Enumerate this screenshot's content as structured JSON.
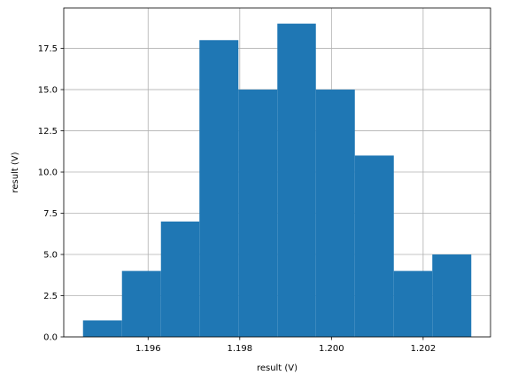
{
  "chart_data": {
    "type": "bar",
    "variant": "histogram",
    "title": "",
    "xlabel": "result (V)",
    "ylabel": "result (V)",
    "bin_edges": [
      1.19458,
      1.19543,
      1.19628,
      1.19712,
      1.19797,
      1.19882,
      1.19966,
      1.20051,
      1.20136,
      1.2022,
      1.20305
    ],
    "counts": [
      1,
      4,
      7,
      18,
      15,
      19,
      15,
      11,
      4,
      5
    ],
    "xlim": [
      1.19416,
      1.20347
    ],
    "ylim": [
      0,
      19.95
    ],
    "xticks": [
      {
        "value": 1.196,
        "label": "1.196"
      },
      {
        "value": 1.198,
        "label": "1.198"
      },
      {
        "value": 1.2,
        "label": "1.200"
      },
      {
        "value": 1.202,
        "label": "1.202"
      }
    ],
    "yticks": [
      {
        "value": 0.0,
        "label": "0.0"
      },
      {
        "value": 2.5,
        "label": "2.5"
      },
      {
        "value": 5.0,
        "label": "5.0"
      },
      {
        "value": 7.5,
        "label": "7.5"
      },
      {
        "value": 10.0,
        "label": "10.0"
      },
      {
        "value": 12.5,
        "label": "12.5"
      },
      {
        "value": 15.0,
        "label": "15.0"
      },
      {
        "value": 17.5,
        "label": "17.5"
      }
    ],
    "grid": true,
    "bar_color": "#1f77b4",
    "grid_color": "#b0b0b0"
  }
}
